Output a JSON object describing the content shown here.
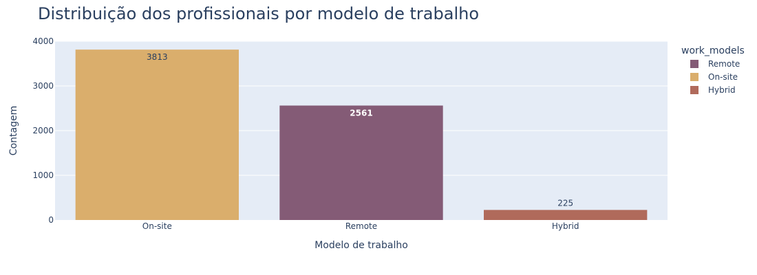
{
  "chart_data": {
    "type": "bar",
    "title": "Distribuição dos profissionais por modelo de trabalho",
    "xlabel": "Modelo de trabalho",
    "ylabel": "Contagem",
    "categories": [
      "On-site",
      "Remote",
      "Hybrid"
    ],
    "values": [
      3813,
      2561,
      225
    ],
    "data_labels": [
      "3813",
      "2561",
      "225"
    ],
    "bar_colors": [
      "#daae6c",
      "#845b76",
      "#b06a5b"
    ],
    "ylim": [
      0,
      4000
    ],
    "y_ticks": [
      0,
      1000,
      2000,
      3000,
      4000
    ],
    "grid": true,
    "plot_background": "#e5ecf6",
    "legend": {
      "title": "work_models",
      "placement": "top-right",
      "entries": [
        {
          "name": "Remote",
          "color": "#845b76"
        },
        {
          "name": "On-site",
          "color": "#daae6c"
        },
        {
          "name": "Hybrid",
          "color": "#b06a5b"
        }
      ]
    }
  }
}
